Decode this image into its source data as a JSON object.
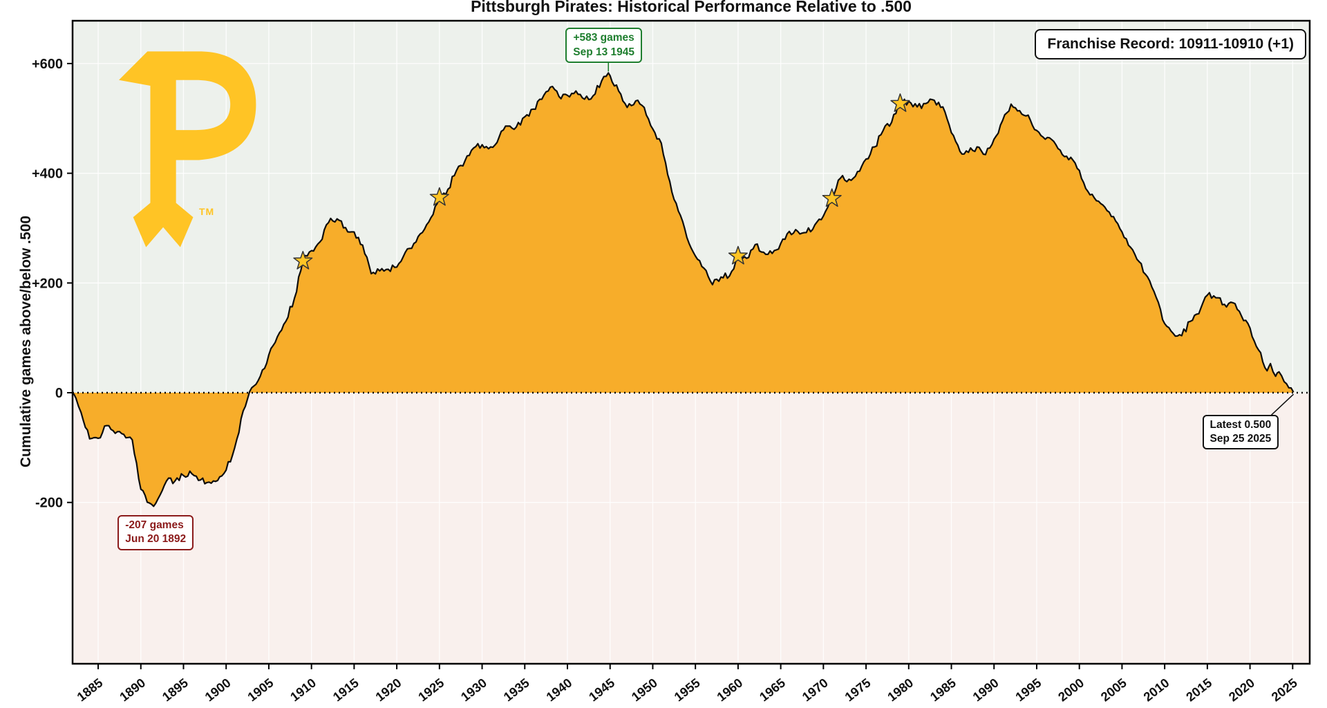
{
  "logo": {
    "letter": "P",
    "tm": "TM"
  },
  "colors": {
    "logo_gold": "#FFC425",
    "area_gold": "#F7AD2A",
    "star_gold": "#FFC425",
    "line": "#0D0D0D",
    "border": "#000000",
    "bg_above_zero": "#EDF1EC",
    "bg_below_zero": "#F9F0ED",
    "grid": "#FFFFFF",
    "peak_green": "#1E7E2E",
    "trough_red": "#8B1A1A",
    "latest_black": "#111111"
  },
  "chart_data": {
    "type": "area",
    "title": "Pittsburgh Pirates: Historical Performance Relative to .500",
    "xlabel": "",
    "ylabel": "Cumulative games above/below .500",
    "xlim": [
      1882,
      2027
    ],
    "ylim": [
      -494,
      678
    ],
    "grid": true,
    "x_ticks": [
      1885,
      1890,
      1895,
      1900,
      1905,
      1910,
      1915,
      1920,
      1925,
      1930,
      1935,
      1940,
      1945,
      1950,
      1955,
      1960,
      1965,
      1970,
      1975,
      1980,
      1985,
      1990,
      1995,
      2000,
      2005,
      2010,
      2015,
      2020,
      2025
    ],
    "y_ticks": [
      {
        "value": -200,
        "label": "-200"
      },
      {
        "value": 0,
        "label": "0"
      },
      {
        "value": 200,
        "label": "+200"
      },
      {
        "value": 400,
        "label": "+400"
      },
      {
        "value": 600,
        "label": "+600"
      }
    ],
    "series": [
      {
        "name": "Cumulative games above/below .500",
        "points": [
          [
            1882,
            0
          ],
          [
            1882.4,
            -10
          ],
          [
            1883,
            -36
          ],
          [
            1884,
            -84
          ],
          [
            1885,
            -83
          ],
          [
            1886,
            -60
          ],
          [
            1887,
            -74
          ],
          [
            1888,
            -76
          ],
          [
            1889,
            -86
          ],
          [
            1890,
            -176
          ],
          [
            1891,
            -201
          ],
          [
            1891.5,
            -207
          ],
          [
            1892,
            -194
          ],
          [
            1893,
            -161
          ],
          [
            1894,
            -161
          ],
          [
            1895,
            -151
          ],
          [
            1896,
            -148
          ],
          [
            1897,
            -159
          ],
          [
            1898,
            -163
          ],
          [
            1899,
            -160
          ],
          [
            1900,
            -141
          ],
          [
            1901,
            -100
          ],
          [
            1902,
            -33
          ],
          [
            1903,
            9
          ],
          [
            1904,
            30
          ],
          [
            1905,
            69
          ],
          [
            1906,
            102
          ],
          [
            1907,
            130
          ],
          [
            1908,
            172
          ],
          [
            1909,
            240
          ],
          [
            1910,
            259
          ],
          [
            1911,
            275
          ],
          [
            1912,
            310
          ],
          [
            1913,
            317
          ],
          [
            1914,
            301
          ],
          [
            1915,
            293
          ],
          [
            1916,
            269
          ],
          [
            1917,
            217
          ],
          [
            1918,
            222
          ],
          [
            1919,
            225
          ],
          [
            1920,
            229
          ],
          [
            1921,
            256
          ],
          [
            1922,
            272
          ],
          [
            1923,
            292
          ],
          [
            1924,
            319
          ],
          [
            1925,
            356
          ],
          [
            1926,
            371
          ],
          [
            1927,
            405
          ],
          [
            1928,
            423
          ],
          [
            1929,
            446
          ],
          [
            1930,
            452
          ],
          [
            1931,
            448
          ],
          [
            1932,
            466
          ],
          [
            1933,
            486
          ],
          [
            1934,
            484
          ],
          [
            1935,
            503
          ],
          [
            1936,
            517
          ],
          [
            1937,
            535
          ],
          [
            1938,
            557
          ],
          [
            1939,
            540
          ],
          [
            1940,
            542
          ],
          [
            1941,
            550
          ],
          [
            1942,
            535
          ],
          [
            1943,
            541
          ],
          [
            1944,
            568
          ],
          [
            1944.8,
            583
          ],
          [
            1945,
            578
          ],
          [
            1946,
            550
          ],
          [
            1947,
            520
          ],
          [
            1948,
            532
          ],
          [
            1949,
            520
          ],
          [
            1950,
            481
          ],
          [
            1951,
            455
          ],
          [
            1952,
            385
          ],
          [
            1953,
            331
          ],
          [
            1954,
            283
          ],
          [
            1955,
            249
          ],
          [
            1956,
            227
          ],
          [
            1957,
            197
          ],
          [
            1958,
            211
          ],
          [
            1959,
            213
          ],
          [
            1960,
            249
          ],
          [
            1961,
            245
          ],
          [
            1962,
            270
          ],
          [
            1963,
            256
          ],
          [
            1964,
            254
          ],
          [
            1965,
            272
          ],
          [
            1966,
            294
          ],
          [
            1967,
            294
          ],
          [
            1968,
            292
          ],
          [
            1969,
            306
          ],
          [
            1970,
            322
          ],
          [
            1971,
            354
          ],
          [
            1972,
            391
          ],
          [
            1973,
            389
          ],
          [
            1974,
            403
          ],
          [
            1975,
            426
          ],
          [
            1976,
            448
          ],
          [
            1977,
            478
          ],
          [
            1978,
            493
          ],
          [
            1979,
            527
          ],
          [
            1980,
            531
          ],
          [
            1981,
            521
          ],
          [
            1982,
            527
          ],
          [
            1983,
            533
          ],
          [
            1984,
            521
          ],
          [
            1985,
            474
          ],
          [
            1986,
            440
          ],
          [
            1987,
            438
          ],
          [
            1988,
            448
          ],
          [
            1989,
            434
          ],
          [
            1990,
            462
          ],
          [
            1991,
            496
          ],
          [
            1992,
            526
          ],
          [
            1993,
            514
          ],
          [
            1994,
            506
          ],
          [
            1995,
            478
          ],
          [
            1996,
            462
          ],
          [
            1997,
            458
          ],
          [
            1998,
            434
          ],
          [
            1999,
            429
          ],
          [
            2000,
            405
          ],
          [
            2001,
            367
          ],
          [
            2002,
            350
          ],
          [
            2003,
            338
          ],
          [
            2004,
            321
          ],
          [
            2005,
            293
          ],
          [
            2006,
            265
          ],
          [
            2007,
            239
          ],
          [
            2008,
            211
          ],
          [
            2009,
            174
          ],
          [
            2010,
            126
          ],
          [
            2011,
            108
          ],
          [
            2012,
            104
          ],
          [
            2013,
            130
          ],
          [
            2014,
            144
          ],
          [
            2015,
            178
          ],
          [
            2016,
            173
          ],
          [
            2017,
            161
          ],
          [
            2018,
            164
          ],
          [
            2019,
            140
          ],
          [
            2020,
            118
          ],
          [
            2021,
            78
          ],
          [
            2022,
            40
          ],
          [
            2022.4,
            53
          ],
          [
            2023,
            30
          ],
          [
            2023.4,
            38
          ],
          [
            2024,
            20
          ],
          [
            2025.1,
            1
          ]
        ]
      }
    ],
    "championship_stars": [
      {
        "year": 1909,
        "value": 240
      },
      {
        "year": 1925,
        "value": 356
      },
      {
        "year": 1960,
        "value": 249
      },
      {
        "year": 1971,
        "value": 354
      },
      {
        "year": 1979,
        "value": 527
      }
    ],
    "annotations": {
      "peak": {
        "lines": [
          "+583 games",
          "Sep 13 1945"
        ],
        "year": 1944.8,
        "value": 583,
        "color": "#1E7E2E"
      },
      "trough": {
        "lines": [
          "-207 games",
          "Jun 20 1892"
        ],
        "year": 1891.5,
        "value": -207,
        "color": "#8B1A1A"
      },
      "latest": {
        "lines": [
          "Latest 0.500",
          "Sep 25 2025"
        ],
        "year": 2025.1,
        "value": 1,
        "color": "#111111"
      },
      "franchise_record": {
        "text": "Franchise Record: 10911-10910 (+1)"
      }
    }
  }
}
